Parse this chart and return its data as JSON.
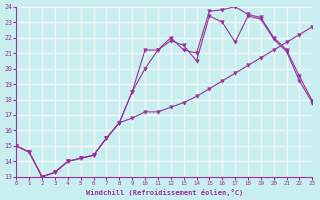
{
  "xlabel": "Windchill (Refroidissement éolien,°C)",
  "bg_color": "#c8eef0",
  "grid_color": "#ffffff",
  "line_color": "#993399",
  "xlim": [
    0,
    23
  ],
  "ylim": [
    13,
    24
  ],
  "line1_x": [
    0,
    1,
    2,
    3,
    4,
    5,
    6,
    7,
    8,
    9,
    10,
    11,
    12,
    13,
    14,
    15,
    16,
    17,
    18,
    19,
    20,
    21,
    22,
    23
  ],
  "line1_y": [
    15.0,
    14.6,
    13.0,
    13.3,
    14.0,
    14.2,
    14.4,
    15.5,
    16.5,
    18.5,
    21.2,
    21.2,
    22.0,
    21.2,
    21.0,
    23.7,
    23.8,
    24.0,
    23.5,
    23.3,
    22.0,
    21.2,
    19.5,
    17.9
  ],
  "line2_x": [
    0,
    1,
    2,
    3,
    4,
    5,
    6,
    7,
    8,
    9,
    10,
    11,
    12,
    13,
    14,
    15,
    16,
    17,
    18,
    19,
    20,
    21,
    22,
    23
  ],
  "line2_y": [
    15.0,
    14.6,
    13.0,
    13.3,
    14.0,
    14.2,
    14.4,
    15.5,
    16.5,
    16.8,
    17.2,
    17.2,
    17.5,
    17.8,
    18.2,
    18.7,
    19.2,
    19.7,
    20.2,
    20.7,
    21.2,
    21.7,
    22.2,
    22.7
  ],
  "line3_x": [
    0,
    1,
    2,
    3,
    4,
    5,
    6,
    7,
    8,
    9,
    10,
    11,
    12,
    13,
    14,
    15,
    16,
    17,
    18,
    19,
    20,
    21,
    22,
    23
  ],
  "line3_y": [
    15.0,
    14.6,
    13.0,
    13.3,
    14.0,
    14.2,
    14.4,
    15.5,
    16.5,
    18.5,
    20.0,
    21.2,
    21.8,
    21.5,
    20.5,
    23.4,
    23.0,
    21.7,
    23.4,
    23.2,
    21.9,
    21.1,
    19.2,
    17.8
  ]
}
